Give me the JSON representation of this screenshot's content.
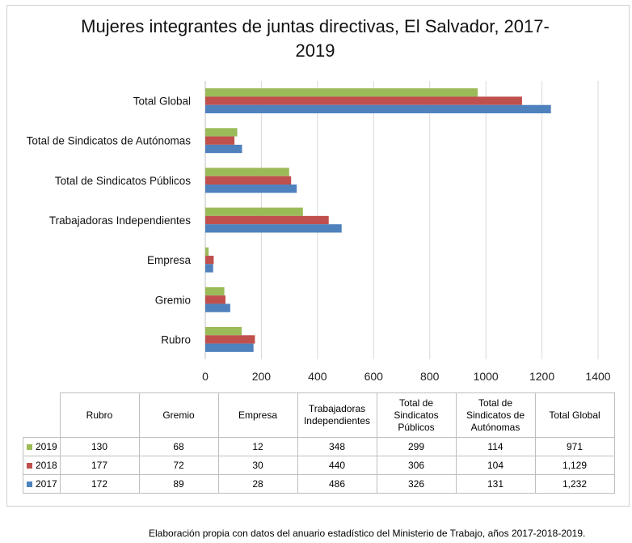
{
  "chart_data": {
    "type": "bar",
    "orientation": "horizontal",
    "title": "Mujeres integrantes de juntas directivas, El Salvador,  2017-\n2019",
    "title_lines": [
      "Mujeres integrantes de juntas directivas, El Salvador,  2017-",
      "2019"
    ],
    "categories": [
      "Rubro",
      "Gremio",
      "Empresa",
      "Trabajadoras Independientes",
      "Total de Sindicatos Públicos",
      "Total de Sindicatos de Autónomas",
      "Total Global"
    ],
    "table_headers": [
      [
        "Rubro"
      ],
      [
        "Gremio"
      ],
      [
        "Empresa"
      ],
      [
        "Trabajadoras",
        "Independientes"
      ],
      [
        "Total de",
        "Sindicatos",
        "Públicos"
      ],
      [
        "Total de",
        "Sindicatos de",
        "Autónomas"
      ],
      [
        "Total Global"
      ]
    ],
    "series": [
      {
        "name": "2019",
        "color": "#9bbb59",
        "values": [
          130,
          68,
          12,
          348,
          299,
          114,
          971
        ],
        "display": [
          "130",
          "68",
          "12",
          "348",
          "299",
          "114",
          "971"
        ]
      },
      {
        "name": "2018",
        "color": "#c0504d",
        "values": [
          177,
          72,
          30,
          440,
          306,
          104,
          1129
        ],
        "display": [
          "177",
          "72",
          "30",
          "440",
          "306",
          "104",
          "1,129"
        ]
      },
      {
        "name": "2017",
        "color": "#4f81bd",
        "values": [
          172,
          89,
          28,
          486,
          326,
          131,
          1232
        ],
        "display": [
          "172",
          "89",
          "28",
          "486",
          "326",
          "131",
          "1,232"
        ]
      }
    ],
    "xlim": [
      0,
      1400
    ],
    "xticks": [
      "0",
      "200",
      "400",
      "600",
      "800",
      "1000",
      "1200",
      "1400"
    ],
    "grid": true,
    "legend": "data-table"
  },
  "caption": "Elaboración propia con datos del anuario estadístico del Ministerio de Trabajo, años 2017-2018-2019."
}
